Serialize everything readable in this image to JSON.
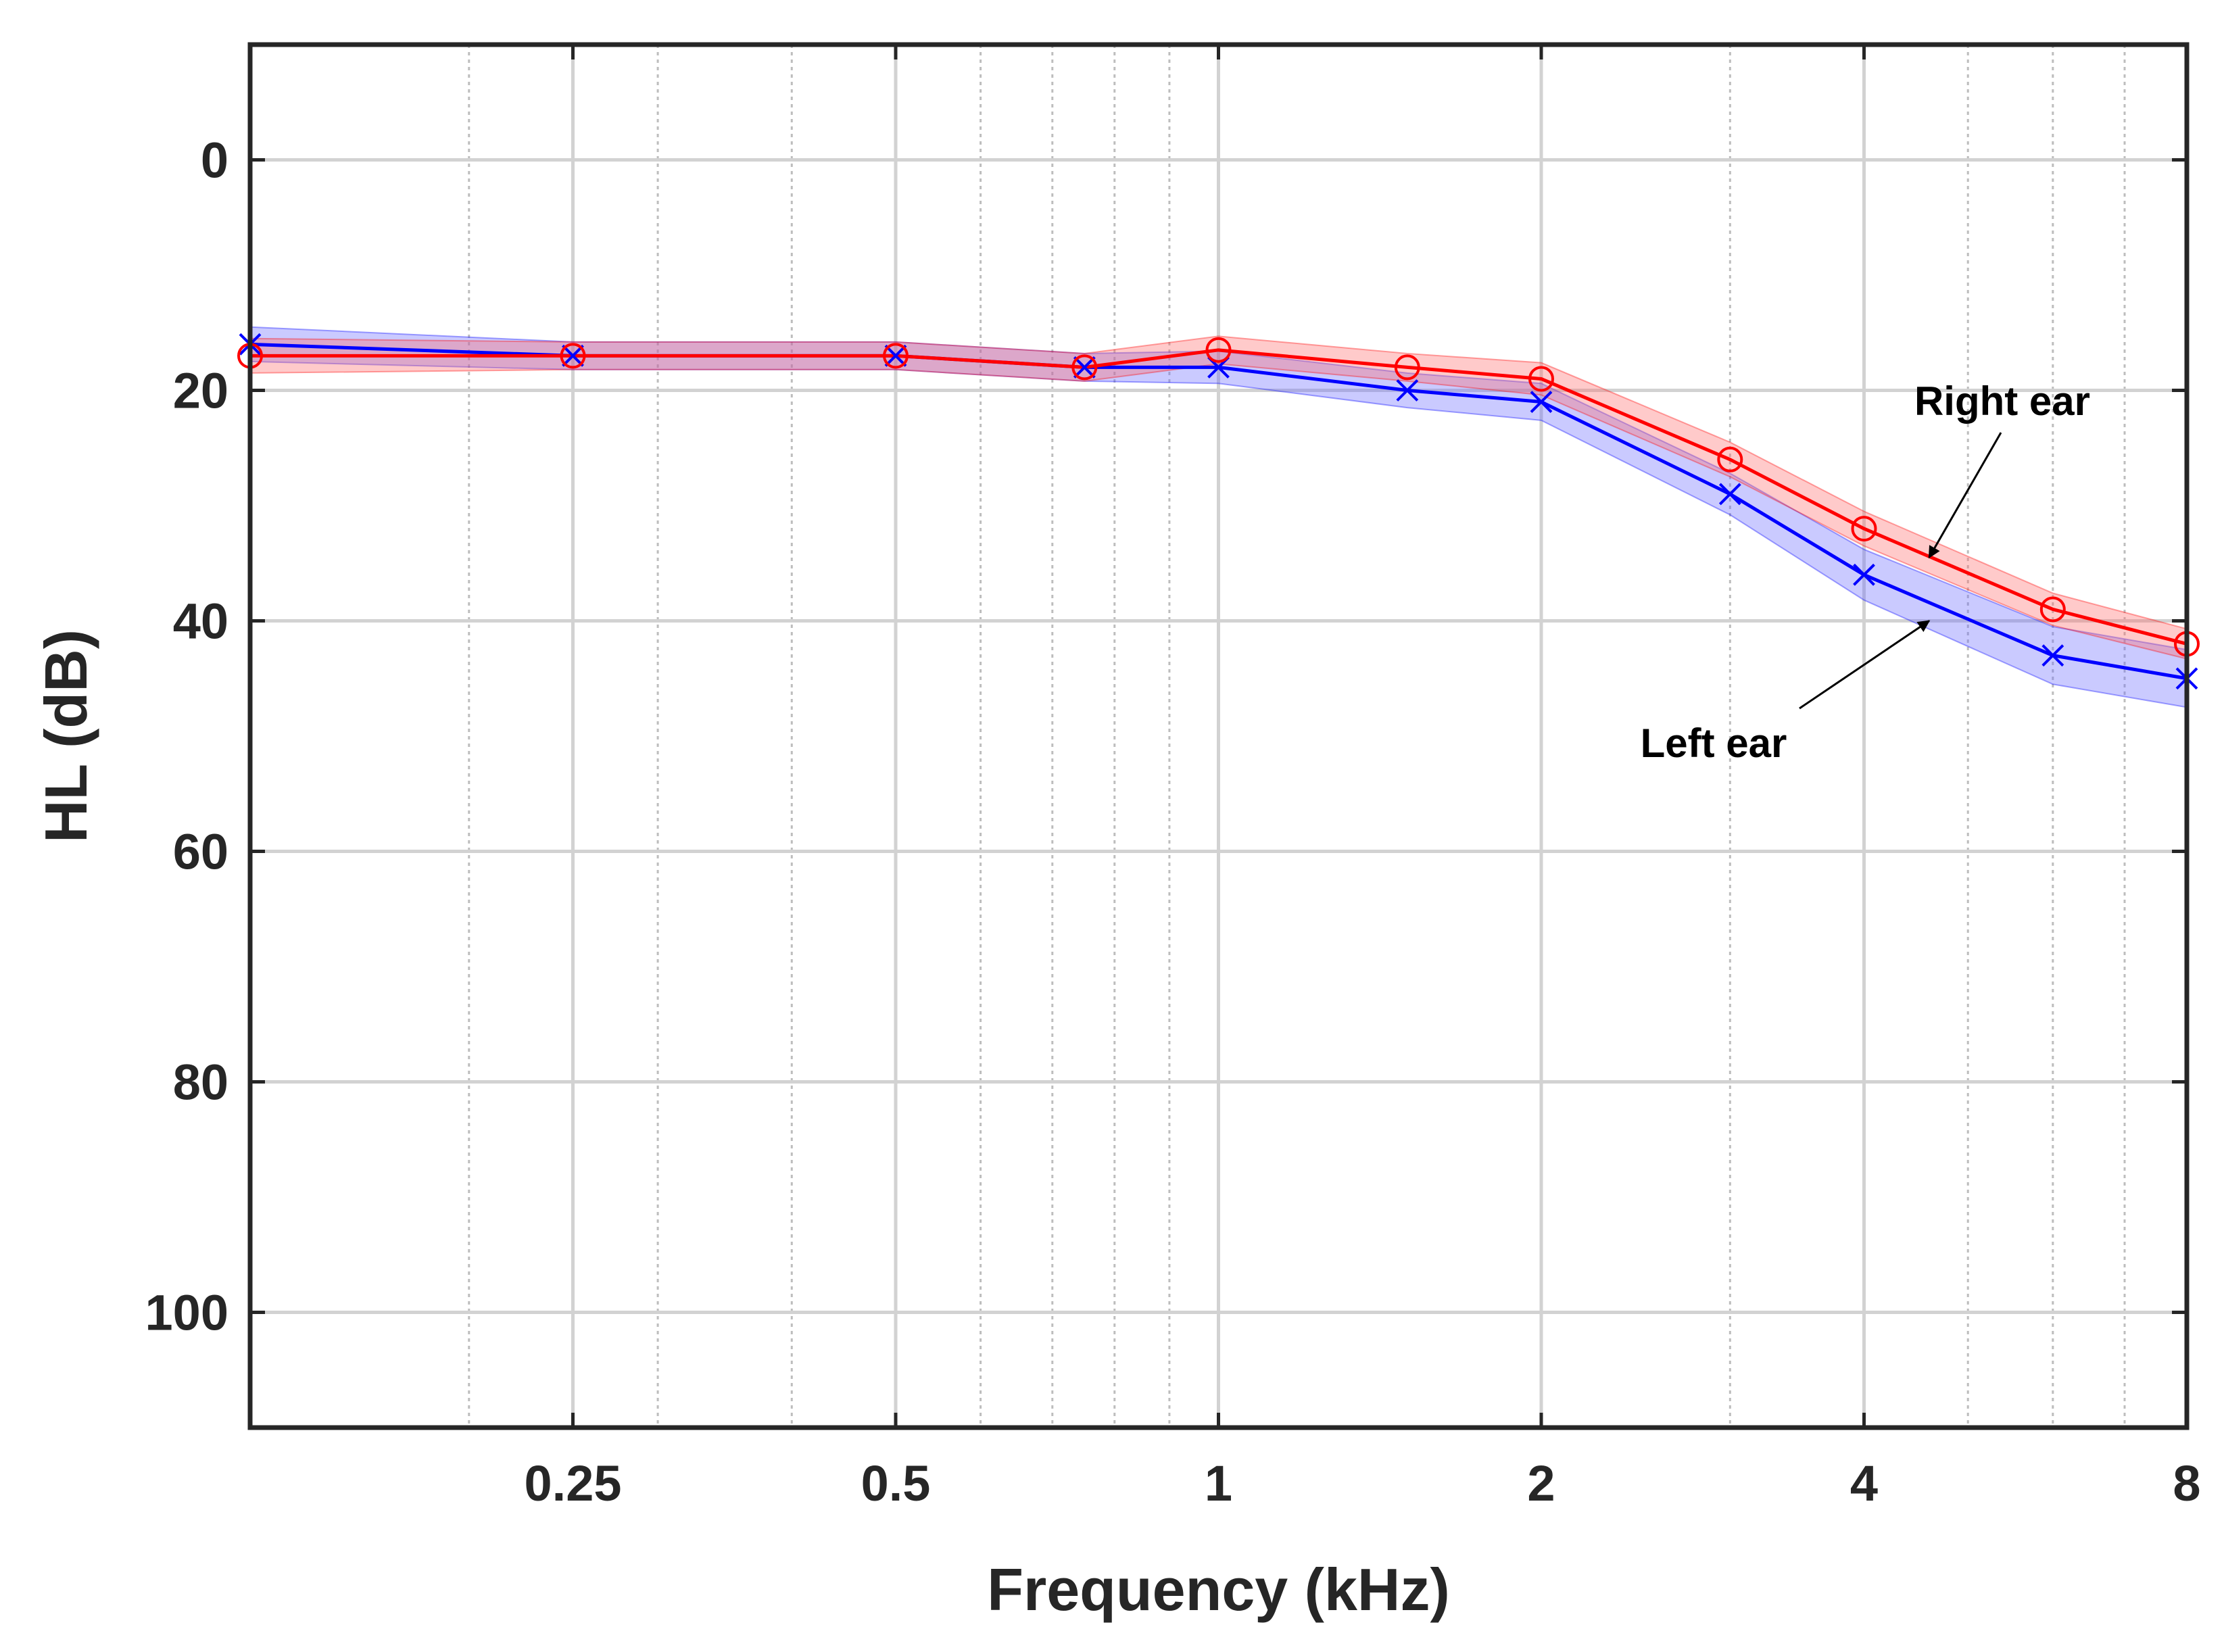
{
  "chart_data": {
    "type": "line",
    "title": "",
    "xlabel": "Frequency (kHz)",
    "ylabel": "HL (dB)",
    "x_scale": "log2",
    "xlim": [
      0.125,
      8
    ],
    "ylim": [
      110,
      -10
    ],
    "y_reversed": true,
    "x_ticks": [
      0.25,
      0.5,
      1,
      2,
      4,
      8
    ],
    "x_tick_labels": [
      "0.25",
      "0.5",
      "1",
      "2",
      "4",
      "8"
    ],
    "x_minor_ticks": [
      0.2,
      0.3,
      0.4,
      0.6,
      0.7,
      0.8,
      0.9,
      3,
      5,
      6,
      7
    ],
    "y_ticks": [
      0,
      20,
      40,
      60,
      80,
      100
    ],
    "y_tick_labels": [
      "0",
      "20",
      "40",
      "60",
      "80",
      "100"
    ],
    "grid": true,
    "x": [
      0.125,
      0.25,
      0.5,
      0.75,
      1,
      1.5,
      2,
      3,
      4,
      6,
      8
    ],
    "series": [
      {
        "name": "Right ear",
        "color": "#ff0000",
        "band_color": "#ff6666",
        "marker": "circle",
        "values": [
          17,
          17,
          17,
          18,
          16.5,
          18,
          19,
          26,
          32,
          39,
          42
        ],
        "lower": [
          15.5,
          15.8,
          15.8,
          16.8,
          15.3,
          16.8,
          17.6,
          24.5,
          30.5,
          37.6,
          40.7
        ],
        "upper": [
          18.5,
          18.2,
          18.2,
          19.2,
          17.7,
          19.2,
          20.4,
          27.5,
          33.5,
          40.4,
          43.3
        ]
      },
      {
        "name": "Left ear",
        "color": "#0000ff",
        "band_color": "#6666ff",
        "marker": "x",
        "values": [
          16,
          17,
          17,
          18,
          18,
          20,
          21,
          29,
          36,
          43,
          45
        ],
        "lower": [
          14.5,
          15.8,
          15.8,
          16.8,
          16.6,
          18.5,
          19.4,
          27.2,
          33.8,
          40.5,
          42.5
        ],
        "upper": [
          17.5,
          18.2,
          18.2,
          19.2,
          19.4,
          21.5,
          22.6,
          30.8,
          38.2,
          45.5,
          47.5
        ]
      }
    ],
    "annotations": [
      {
        "text": "Right ear",
        "series": "Right ear",
        "at_x": 4.6,
        "arrow_to_y": 34.5
      },
      {
        "text": "Left ear",
        "series": "Left ear",
        "at_x": 4.6,
        "arrow_to_y": 40
      }
    ]
  }
}
